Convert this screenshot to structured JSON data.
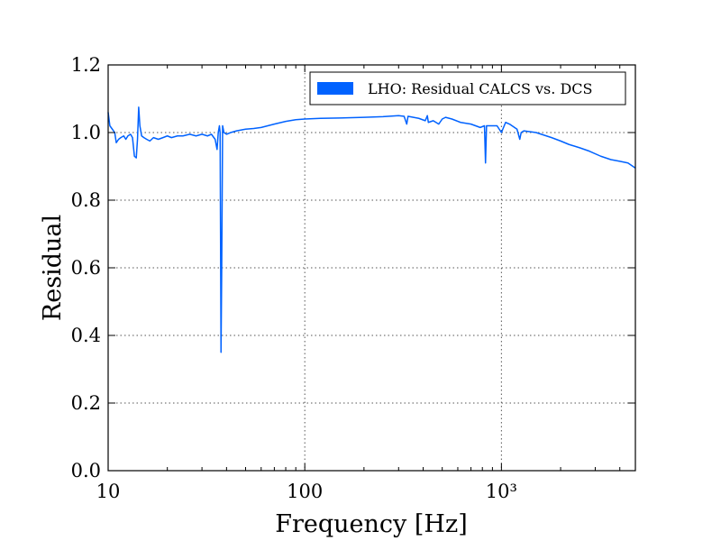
{
  "chart_data": {
    "type": "line",
    "title": "",
    "xlabel": "Frequency [Hz]",
    "ylabel": "Residual",
    "xscale": "log",
    "xlim": [
      10,
      4800
    ],
    "ylim": [
      0.0,
      1.2
    ],
    "grid": true,
    "legend_position": "top-right",
    "x_tick_values": [
      10,
      100,
      1000
    ],
    "x_tick_labels": [
      "10",
      "100",
      "10³"
    ],
    "y_ticks": [
      "0.0",
      "0.2",
      "0.4",
      "0.6",
      "0.8",
      "1.0",
      "1.2"
    ],
    "series": [
      {
        "name": "LHO: Residual CALCS vs. DCS",
        "color": "#0062ff",
        "points": [
          [
            10.0,
            1.06
          ],
          [
            10.2,
            1.02
          ],
          [
            10.5,
            1.01
          ],
          [
            10.8,
            1.0
          ],
          [
            11.0,
            0.97
          ],
          [
            11.3,
            0.98
          ],
          [
            11.6,
            0.985
          ],
          [
            12.0,
            0.99
          ],
          [
            12.3,
            0.98
          ],
          [
            12.6,
            0.99
          ],
          [
            13.0,
            0.995
          ],
          [
            13.3,
            0.985
          ],
          [
            13.6,
            0.93
          ],
          [
            13.9,
            0.925
          ],
          [
            14.1,
            0.98
          ],
          [
            14.3,
            1.075
          ],
          [
            14.5,
            1.02
          ],
          [
            14.8,
            0.99
          ],
          [
            15.2,
            0.985
          ],
          [
            15.7,
            0.98
          ],
          [
            16.3,
            0.975
          ],
          [
            17.0,
            0.985
          ],
          [
            18.0,
            0.98
          ],
          [
            19.0,
            0.985
          ],
          [
            20.0,
            0.99
          ],
          [
            21.0,
            0.985
          ],
          [
            22.5,
            0.99
          ],
          [
            24.0,
            0.99
          ],
          [
            26.0,
            0.995
          ],
          [
            28.0,
            0.99
          ],
          [
            30.0,
            0.995
          ],
          [
            32.0,
            0.99
          ],
          [
            33.5,
            0.995
          ],
          [
            35.0,
            0.98
          ],
          [
            35.8,
            0.95
          ],
          [
            36.3,
            1.0
          ],
          [
            36.8,
            1.02
          ],
          [
            37.1,
            1.0
          ],
          [
            37.5,
            0.35
          ],
          [
            37.8,
            0.6
          ],
          [
            38.2,
            1.02
          ],
          [
            38.8,
            1.0
          ],
          [
            40.0,
            0.995
          ],
          [
            42.0,
            1.0
          ],
          [
            45.0,
            1.005
          ],
          [
            50.0,
            1.01
          ],
          [
            55.0,
            1.012
          ],
          [
            60.0,
            1.015
          ],
          [
            70.0,
            1.025
          ],
          [
            80.0,
            1.033
          ],
          [
            90.0,
            1.038
          ],
          [
            100.0,
            1.04
          ],
          [
            120.0,
            1.042
          ],
          [
            150.0,
            1.043
          ],
          [
            200.0,
            1.045
          ],
          [
            250.0,
            1.047
          ],
          [
            300.0,
            1.05
          ],
          [
            320.0,
            1.048
          ],
          [
            330.0,
            1.025
          ],
          [
            335.0,
            1.048
          ],
          [
            380.0,
            1.042
          ],
          [
            410.0,
            1.035
          ],
          [
            420.0,
            1.05
          ],
          [
            425.0,
            1.03
          ],
          [
            450.0,
            1.035
          ],
          [
            480.0,
            1.025
          ],
          [
            500.0,
            1.04
          ],
          [
            520.0,
            1.045
          ],
          [
            560.0,
            1.04
          ],
          [
            620.0,
            1.03
          ],
          [
            700.0,
            1.025
          ],
          [
            780.0,
            1.015
          ],
          [
            820.0,
            1.02
          ],
          [
            830.0,
            0.91
          ],
          [
            840.0,
            1.02
          ],
          [
            880.0,
            1.02
          ],
          [
            950.0,
            1.02
          ],
          [
            1000.0,
            1.0
          ],
          [
            1050.0,
            1.03
          ],
          [
            1100.0,
            1.025
          ],
          [
            1200.0,
            1.01
          ],
          [
            1240.0,
            0.98
          ],
          [
            1260.0,
            1.0
          ],
          [
            1300.0,
            1.005
          ],
          [
            1500.0,
            1.0
          ],
          [
            1800.0,
            0.985
          ],
          [
            2000.0,
            0.975
          ],
          [
            2200.0,
            0.965
          ],
          [
            2500.0,
            0.955
          ],
          [
            2800.0,
            0.945
          ],
          [
            3200.0,
            0.93
          ],
          [
            3600.0,
            0.92
          ],
          [
            4000.0,
            0.915
          ],
          [
            4400.0,
            0.91
          ],
          [
            4800.0,
            0.895
          ]
        ]
      }
    ]
  }
}
